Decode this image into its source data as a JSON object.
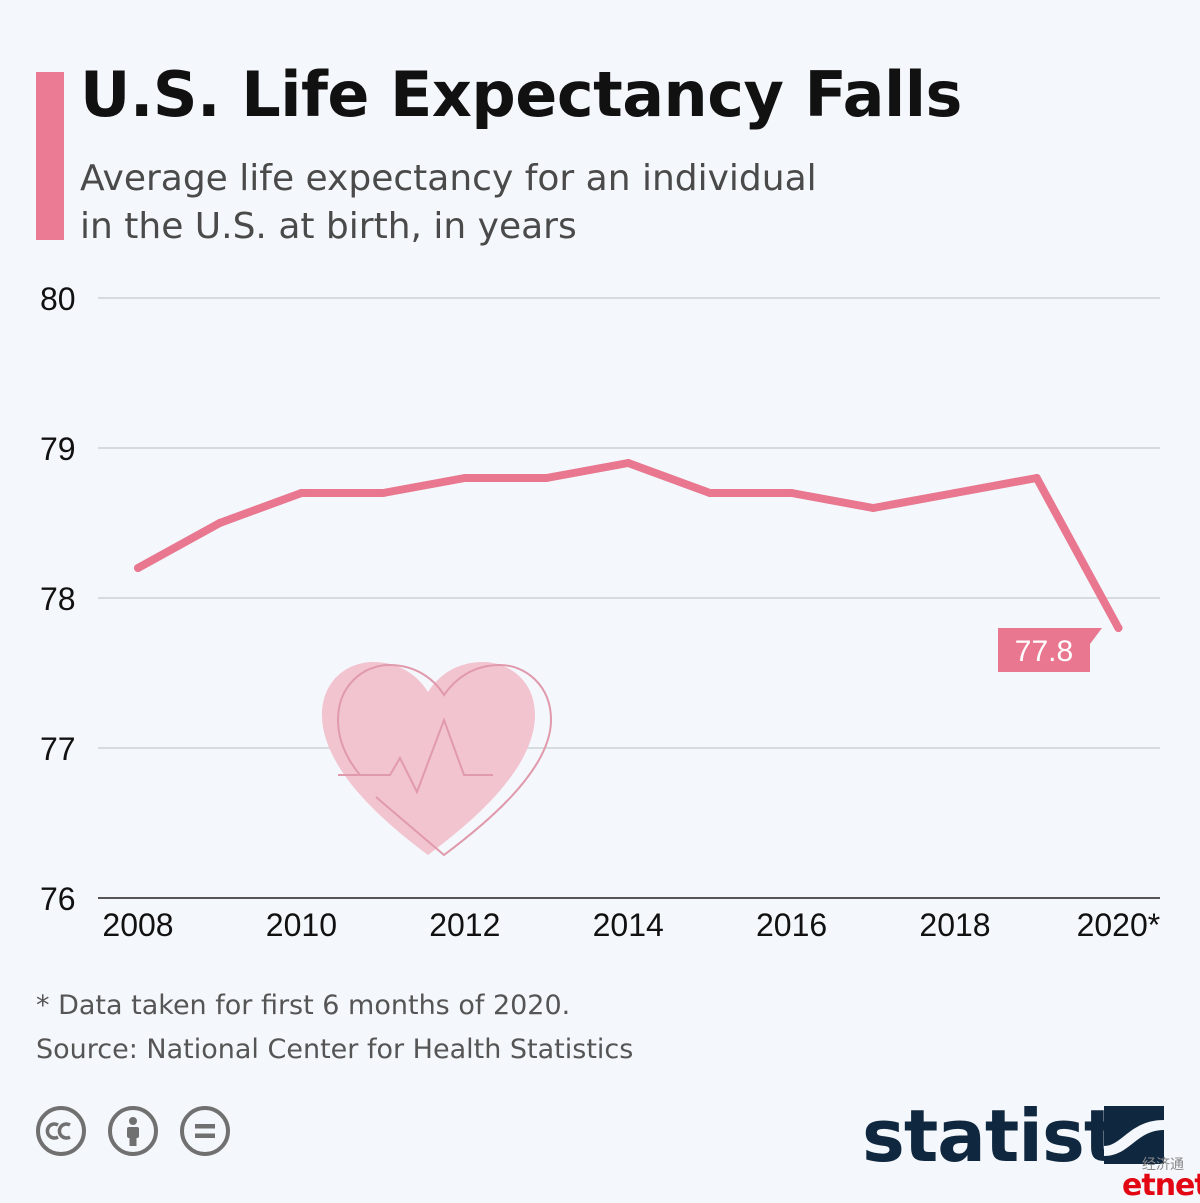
{
  "header": {
    "title": "U.S. Life Expectancy Falls",
    "subtitle_line1": "Average life expectancy for an individual",
    "subtitle_line2": "in the U.S. at birth, in years"
  },
  "colors": {
    "accent": "#eb7a94",
    "line": "#e8778f",
    "grid": "#c5c8cc",
    "brand": "#10283f",
    "heart_fill": "#f2c4d0",
    "heart_stroke": "#e09aac"
  },
  "chart_data": {
    "type": "line",
    "x": [
      2008,
      2009,
      2010,
      2011,
      2012,
      2013,
      2014,
      2015,
      2016,
      2017,
      2018,
      2019,
      2020
    ],
    "values": [
      78.2,
      78.5,
      78.7,
      78.7,
      78.8,
      78.8,
      78.9,
      78.7,
      78.7,
      78.6,
      78.7,
      78.8,
      77.8
    ],
    "x_tick_labels": [
      "2008",
      "2010",
      "2012",
      "2014",
      "2016",
      "2018",
      "2020*"
    ],
    "x_tick_values": [
      2008,
      2010,
      2012,
      2014,
      2016,
      2018,
      2020
    ],
    "y_ticks": [
      80,
      79,
      78,
      77,
      76
    ],
    "ylim": [
      76,
      80
    ],
    "grid": true,
    "data_label": "77.8",
    "title": "",
    "xlabel": "",
    "ylabel": ""
  },
  "footer": {
    "note": "* Data taken for first 6 months of 2020.",
    "source": "Source: National Center for Health Statistics",
    "license_icons": [
      "cc-icon",
      "by-icon",
      "nd-icon"
    ],
    "brand": "statista",
    "partner_cn": "经济通",
    "partner": "etnet"
  }
}
